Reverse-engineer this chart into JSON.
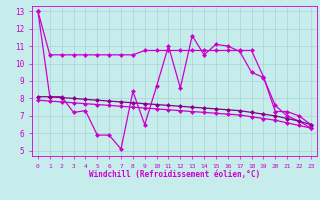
{
  "xlabel": "Windchill (Refroidissement éolien,°C)",
  "background_color": "#c6ecec",
  "grid_color": "#a8d4d4",
  "line_color": "#cc00cc",
  "line_color2": "#880088",
  "xlim_min": -0.5,
  "xlim_max": 23.5,
  "ylim_min": 4.7,
  "ylim_max": 13.3,
  "yticks": [
    5,
    6,
    7,
    8,
    9,
    10,
    11,
    12,
    13
  ],
  "xticks": [
    0,
    1,
    2,
    3,
    4,
    5,
    6,
    7,
    8,
    9,
    10,
    11,
    12,
    13,
    14,
    15,
    16,
    17,
    18,
    19,
    20,
    21,
    22,
    23
  ],
  "upper_line_x": [
    0,
    1,
    2,
    3,
    4,
    5,
    6,
    7,
    8,
    9,
    10,
    11,
    12,
    13,
    14,
    15,
    16,
    17,
    18,
    19,
    20,
    21,
    22,
    23
  ],
  "upper_line_y": [
    13.0,
    10.5,
    10.5,
    10.5,
    10.5,
    10.5,
    10.5,
    10.5,
    10.5,
    10.75,
    10.75,
    10.75,
    10.75,
    10.75,
    10.75,
    10.75,
    10.75,
    10.75,
    10.75,
    9.25,
    7.25,
    7.25,
    7.0,
    6.5
  ],
  "jagged_line_x": [
    0,
    1,
    2,
    3,
    4,
    5,
    6,
    7,
    8,
    9,
    10,
    11,
    12,
    13,
    14,
    15,
    16,
    17,
    18,
    19,
    20,
    21,
    22,
    23
  ],
  "jagged_line_y": [
    13.0,
    8.1,
    8.1,
    7.2,
    7.3,
    5.9,
    5.9,
    5.1,
    8.4,
    6.5,
    8.7,
    11.0,
    8.6,
    11.6,
    10.5,
    11.1,
    11.0,
    10.7,
    9.5,
    9.2,
    7.6,
    7.0,
    6.7,
    6.3
  ],
  "lower_line1_x": [
    0,
    1,
    2,
    3,
    4,
    5,
    6,
    7,
    8,
    9,
    10,
    11,
    12,
    13,
    14,
    15,
    16,
    17,
    18,
    19,
    20,
    21,
    22,
    23
  ],
  "lower_line1_y": [
    8.1,
    8.1,
    8.05,
    8.0,
    7.95,
    7.9,
    7.85,
    7.8,
    7.75,
    7.7,
    7.65,
    7.6,
    7.55,
    7.5,
    7.45,
    7.4,
    7.35,
    7.3,
    7.2,
    7.1,
    7.0,
    6.85,
    6.7,
    6.5
  ],
  "lower_line2_x": [
    0,
    1,
    2,
    3,
    4,
    5,
    6,
    7,
    8,
    9,
    10,
    11,
    12,
    13,
    14,
    15,
    16,
    17,
    18,
    19,
    20,
    21,
    22,
    23
  ],
  "lower_line2_y": [
    7.9,
    7.85,
    7.8,
    7.75,
    7.7,
    7.65,
    7.6,
    7.55,
    7.5,
    7.45,
    7.4,
    7.35,
    7.3,
    7.25,
    7.2,
    7.15,
    7.1,
    7.05,
    6.95,
    6.85,
    6.75,
    6.6,
    6.45,
    6.3
  ]
}
